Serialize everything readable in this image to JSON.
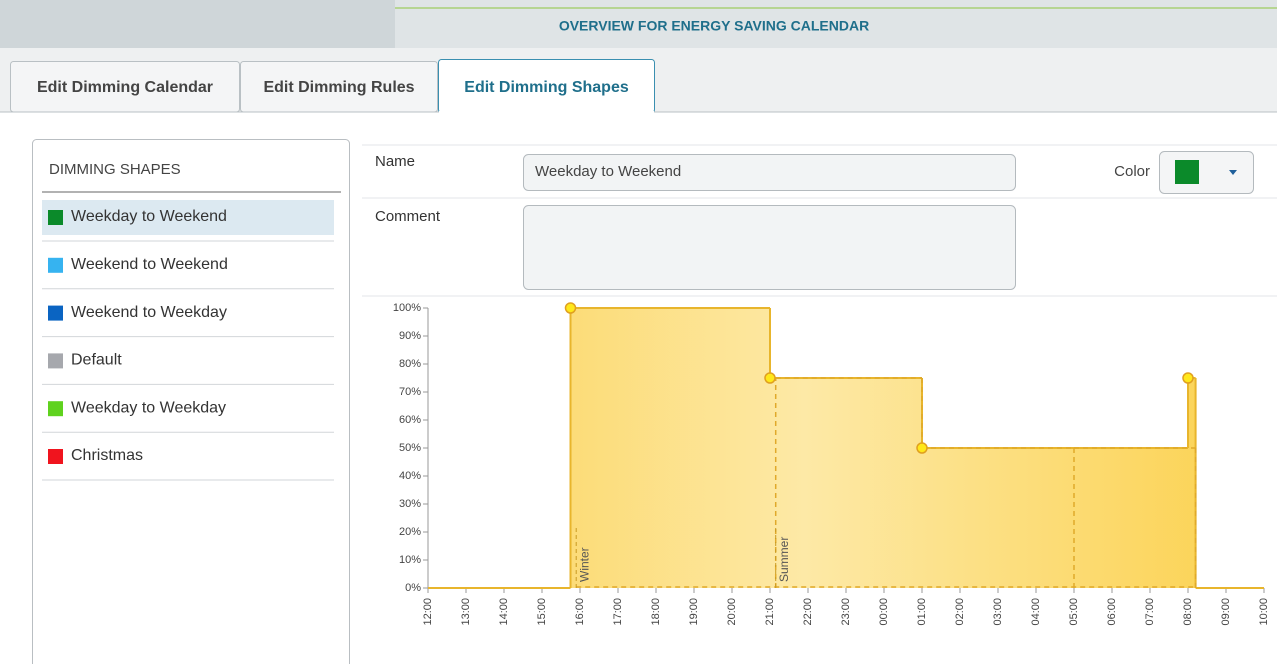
{
  "header": {
    "title": "OVERVIEW FOR ENERGY SAVING CALENDAR"
  },
  "tabs": [
    {
      "label": "Edit Dimming Calendar",
      "active": false
    },
    {
      "label": "Edit Dimming Rules",
      "active": false
    },
    {
      "label": "Edit Dimming Shapes",
      "active": true
    }
  ],
  "shapes_panel": {
    "title": "DIMMING SHAPES",
    "items": [
      {
        "name": "Weekday to Weekend",
        "color": "#0b8a2a",
        "selected": true
      },
      {
        "name": "Weekend to Weekend",
        "color": "#36b3f0",
        "selected": false
      },
      {
        "name": "Weekend to Weekday",
        "color": "#0a64c2",
        "selected": false
      },
      {
        "name": "Default",
        "color": "#a6a8ad",
        "selected": false
      },
      {
        "name": "Weekday to Weekday",
        "color": "#5fd21e",
        "selected": false
      },
      {
        "name": "Christmas",
        "color": "#f0141e",
        "selected": false
      }
    ]
  },
  "form": {
    "name_label": "Name",
    "name_value": "Weekday to Weekend",
    "color_label": "Color",
    "color_value": "#0b8a2a",
    "comment_label": "Comment"
  },
  "chart_data": {
    "type": "step",
    "xlim": [
      0,
      22
    ],
    "xticks": [
      {
        "value": 0,
        "label": "12:00"
      },
      {
        "value": 1,
        "label": "13:00"
      },
      {
        "value": 2,
        "label": "14:00"
      },
      {
        "value": 3,
        "label": "15:00"
      },
      {
        "value": 4,
        "label": "16:00"
      },
      {
        "value": 5,
        "label": "17:00"
      },
      {
        "value": 6,
        "label": "18:00"
      },
      {
        "value": 7,
        "label": "19:00"
      },
      {
        "value": 8,
        "label": "20:00"
      },
      {
        "value": 9,
        "label": "21:00"
      },
      {
        "value": 10,
        "label": "22:00"
      },
      {
        "value": 11,
        "label": "23:00"
      },
      {
        "value": 12,
        "label": "00:00"
      },
      {
        "value": 13,
        "label": "01:00"
      },
      {
        "value": 14,
        "label": "02:00"
      },
      {
        "value": 15,
        "label": "03:00"
      },
      {
        "value": 16,
        "label": "04:00"
      },
      {
        "value": 17,
        "label": "05:00"
      },
      {
        "value": 18,
        "label": "06:00"
      },
      {
        "value": 19,
        "label": "07:00"
      },
      {
        "value": 20,
        "label": "08:00"
      },
      {
        "value": 21,
        "label": "09:00"
      },
      {
        "value": 22,
        "label": "10:00"
      }
    ],
    "ylim": [
      0,
      100
    ],
    "yticks": [
      {
        "value": 0,
        "label": "0%"
      },
      {
        "value": 10,
        "label": "10%"
      },
      {
        "value": 20,
        "label": "20%"
      },
      {
        "value": 30,
        "label": "30%"
      },
      {
        "value": 40,
        "label": "40%"
      },
      {
        "value": 50,
        "label": "50%"
      },
      {
        "value": 60,
        "label": "60%"
      },
      {
        "value": 70,
        "label": "70%"
      },
      {
        "value": 80,
        "label": "80%"
      },
      {
        "value": 90,
        "label": "90%"
      },
      {
        "value": 100,
        "label": "100%"
      }
    ],
    "series": [
      {
        "color": "#e8b52c",
        "x": [
          0,
          3.75,
          9,
          13,
          20,
          20.2
        ],
        "values": [
          0,
          100,
          75,
          50,
          75,
          0
        ]
      }
    ],
    "dashed_series": {
      "color": "#e0a92a",
      "x": [
        9.15,
        13,
        17,
        20.2
      ],
      "values": [
        75,
        50,
        50,
        0
      ]
    },
    "control_points": {
      "color": "#ffe81a",
      "x": [
        3.75,
        9,
        13,
        20
      ],
      "values": [
        100,
        75,
        50,
        75
      ]
    },
    "annotations": [
      {
        "text": "Winter",
        "x": 3.9
      },
      {
        "text": "Summer",
        "x": 9.15
      }
    ]
  }
}
